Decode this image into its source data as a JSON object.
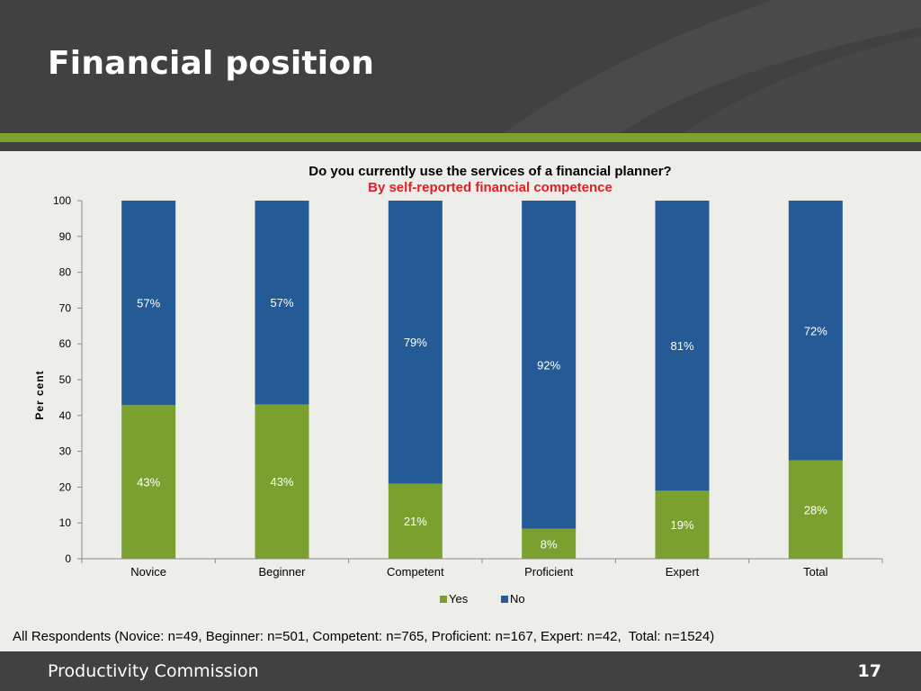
{
  "slide": {
    "title": "Financial position",
    "footnote": "All Respondents (Novice: n=49, Beginner: n=501, Competent: n=765, Proficient: n=167, Expert: n=42,  Total: n=1524)",
    "footer_org": "Productivity Commission",
    "page_number": "17"
  },
  "colors": {
    "header": "#414141",
    "accent_green": "#7ea12d",
    "yes": "#7aa12f",
    "no": "#245a96",
    "subtitle": "#e31e24"
  },
  "chart_data": {
    "type": "bar",
    "stacked": true,
    "title": "Do you currently use the services of a financial planner?",
    "subtitle": "By self-reported financial competence",
    "ylabel": "Per cent",
    "xlabel": "",
    "ylim": [
      0,
      100
    ],
    "yticks": [
      0,
      10,
      20,
      30,
      40,
      50,
      60,
      70,
      80,
      90,
      100
    ],
    "categories": [
      "Novice",
      "Beginner",
      "Competent",
      "Proficient",
      "Expert",
      "Total"
    ],
    "series": [
      {
        "name": "Yes",
        "values": [
          42.9,
          43.1,
          21,
          8.4,
          19,
          27.5
        ],
        "labels": [
          "43%",
          "43%",
          "21%",
          "8%",
          "19%",
          "28%"
        ]
      },
      {
        "name": "No",
        "values": [
          57.1,
          56.9,
          79,
          91.6,
          81,
          72.5
        ],
        "labels": [
          "57%",
          "57%",
          "79%",
          "92%",
          "81%",
          "72%"
        ]
      }
    ],
    "grid": false,
    "legend": "bottom"
  }
}
